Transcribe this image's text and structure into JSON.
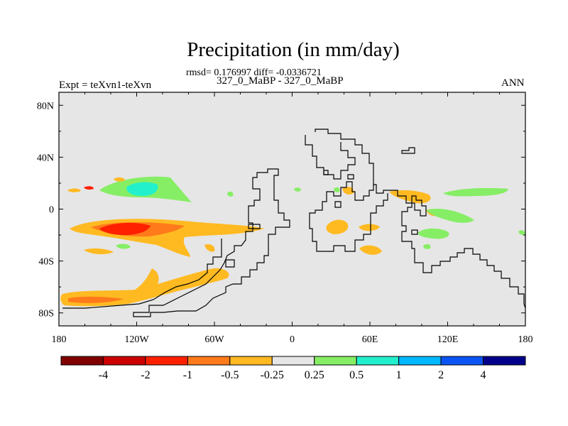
{
  "chart_data": {
    "type": "contour-map",
    "title": "Precipitation (in mm/day)",
    "stats_line": "rmsd= 0.176997 diff= -0.0336721",
    "case_line": "327_0_MaBP - 327_0_MaBP",
    "experiment_label": "Expt = teXvn1-teXvn",
    "season_label": "ANN",
    "x_ticks": [
      {
        "value": -180,
        "label": "180"
      },
      {
        "value": -120,
        "label": "120W"
      },
      {
        "value": -60,
        "label": "60W"
      },
      {
        "value": 0,
        "label": "0"
      },
      {
        "value": 60,
        "label": "60E"
      },
      {
        "value": 120,
        "label": "120E"
      },
      {
        "value": 180,
        "label": "180"
      }
    ],
    "y_ticks": [
      {
        "value": 80,
        "label": "80N"
      },
      {
        "value": 40,
        "label": "40N"
      },
      {
        "value": 0,
        "label": "0"
      },
      {
        "value": -40,
        "label": "40S"
      },
      {
        "value": -80,
        "label": "80S"
      }
    ],
    "xlim": [
      -180,
      180
    ],
    "ylim": [
      -90,
      90
    ],
    "background_color": "#e6e6e6",
    "colorbar": {
      "colors": [
        "#800000",
        "#cc0000",
        "#ff2000",
        "#ff7a1a",
        "#ffba22",
        "#e6e6e6",
        "#86ee65",
        "#22f0cc",
        "#00b8ff",
        "#0a54f5",
        "#00008a"
      ],
      "labels": [
        "-4",
        "-2",
        "-1",
        "-0.5",
        "-0.25",
        "0.25",
        "0.5",
        "1",
        "2",
        "4"
      ]
    },
    "anomaly_regions": [
      {
        "category": "-0.25 to -0.5",
        "color": "#ffba22",
        "lon": -125,
        "lat": -15,
        "note": "South Pacific band"
      },
      {
        "category": "-0.5 to -1",
        "color": "#ff7a1a",
        "lon": -125,
        "lat": -15
      },
      {
        "category": "-1 to -2",
        "color": "#ff2000",
        "lon": -125,
        "lat": -15
      },
      {
        "category": "-0.25 to -0.5",
        "color": "#ffba22",
        "lon": -140,
        "lat": -70,
        "note": "Southern Ocean band"
      },
      {
        "category": "-0.5 to -1",
        "color": "#ff7a1a",
        "lon": -160,
        "lat": -70
      },
      {
        "category": "0.25 to 0.5",
        "color": "#86ee65",
        "lon": -110,
        "lat": 16,
        "note": "North Pacific"
      },
      {
        "category": "0.5 to 1",
        "color": "#22f0cc",
        "lon": -118,
        "lat": 16
      },
      {
        "category": "0.25 to 0.5",
        "color": "#86ee65",
        "lon": 150,
        "lat": 12,
        "note": "Western Pacific"
      },
      {
        "category": "0.25 to 0.5",
        "color": "#86ee65",
        "lon": 105,
        "lat": -18,
        "note": "Indonesia"
      },
      {
        "category": "-0.25 to -0.5",
        "color": "#ffba22",
        "lon": 95,
        "lat": 10
      },
      {
        "category": "-0.25 to -0.5",
        "color": "#ffba22",
        "lon": 35,
        "lat": -12
      },
      {
        "category": "-0.25 to -0.5",
        "color": "#ffba22",
        "lon": 60,
        "lat": -30
      }
    ]
  }
}
